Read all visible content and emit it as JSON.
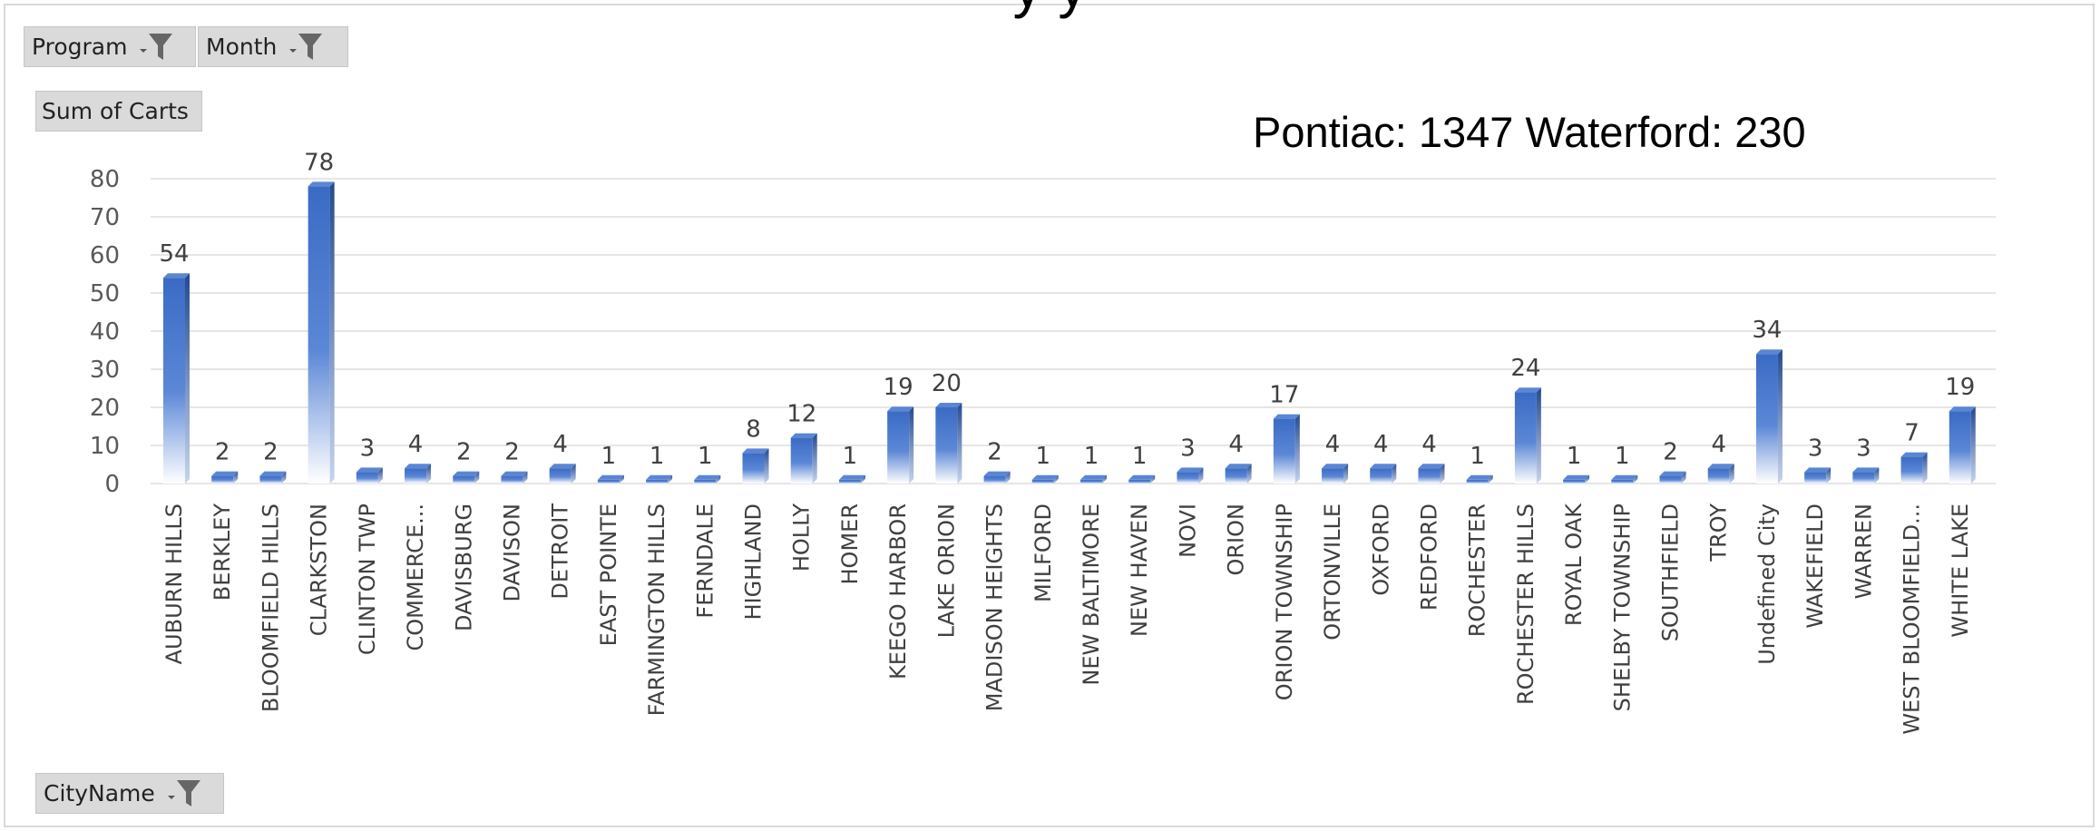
{
  "title_fragment": "y  y",
  "filters": {
    "program_label": "Program",
    "month_label": "Month",
    "value_field_label": "Sum of Carts",
    "axis_field_label": "CityName",
    "filter_icon": "filter-dropdown-icon"
  },
  "annotation": "Pontiac: 1347  Waterford: 230",
  "colors": {
    "bar": "#3a6bc4",
    "bar_dark": "#24498f",
    "grid": "#e6e6e6",
    "axis_text": "#595959"
  },
  "chart_data": {
    "type": "bar",
    "categories": [
      "AUBURN HILLS",
      "BERKLEY",
      "BLOOMFIELD HILLS",
      "CLARKSTON",
      "CLINTON TWP",
      "COMMERCE...",
      "DAVISBURG",
      "DAVISON",
      "DETROIT",
      "EAST POINTE",
      "FARMINGTON HILLS",
      "FERNDALE",
      "HIGHLAND",
      "HOLLY",
      "HOMER",
      "KEEGO HARBOR",
      "LAKE ORION",
      "MADISON HEIGHTS",
      "MILFORD",
      "NEW BALTIMORE",
      "NEW HAVEN",
      "NOVI",
      "ORION",
      "ORION TOWNSHIP",
      "ORTONVILLE",
      "OXFORD",
      "REDFORD",
      "ROCHESTER",
      "ROCHESTER HILLS",
      "ROYAL OAK",
      "SHELBY TOWNSHIP",
      "SOUTHFIELD",
      "TROY",
      "Undefined City",
      "WAKEFIELD",
      "WARREN",
      "WEST BLOOMFIELD...",
      "WHITE LAKE"
    ],
    "values": [
      54,
      2,
      2,
      78,
      3,
      4,
      2,
      2,
      4,
      1,
      1,
      1,
      8,
      12,
      1,
      19,
      20,
      2,
      1,
      1,
      1,
      3,
      4,
      17,
      4,
      4,
      4,
      1,
      24,
      1,
      1,
      2,
      4,
      34,
      3,
      3,
      7,
      19
    ],
    "yticks": [
      0,
      10,
      20,
      30,
      40,
      50,
      60,
      70,
      80
    ],
    "ylim": [
      0,
      80
    ],
    "grid": true,
    "legend": "none"
  }
}
